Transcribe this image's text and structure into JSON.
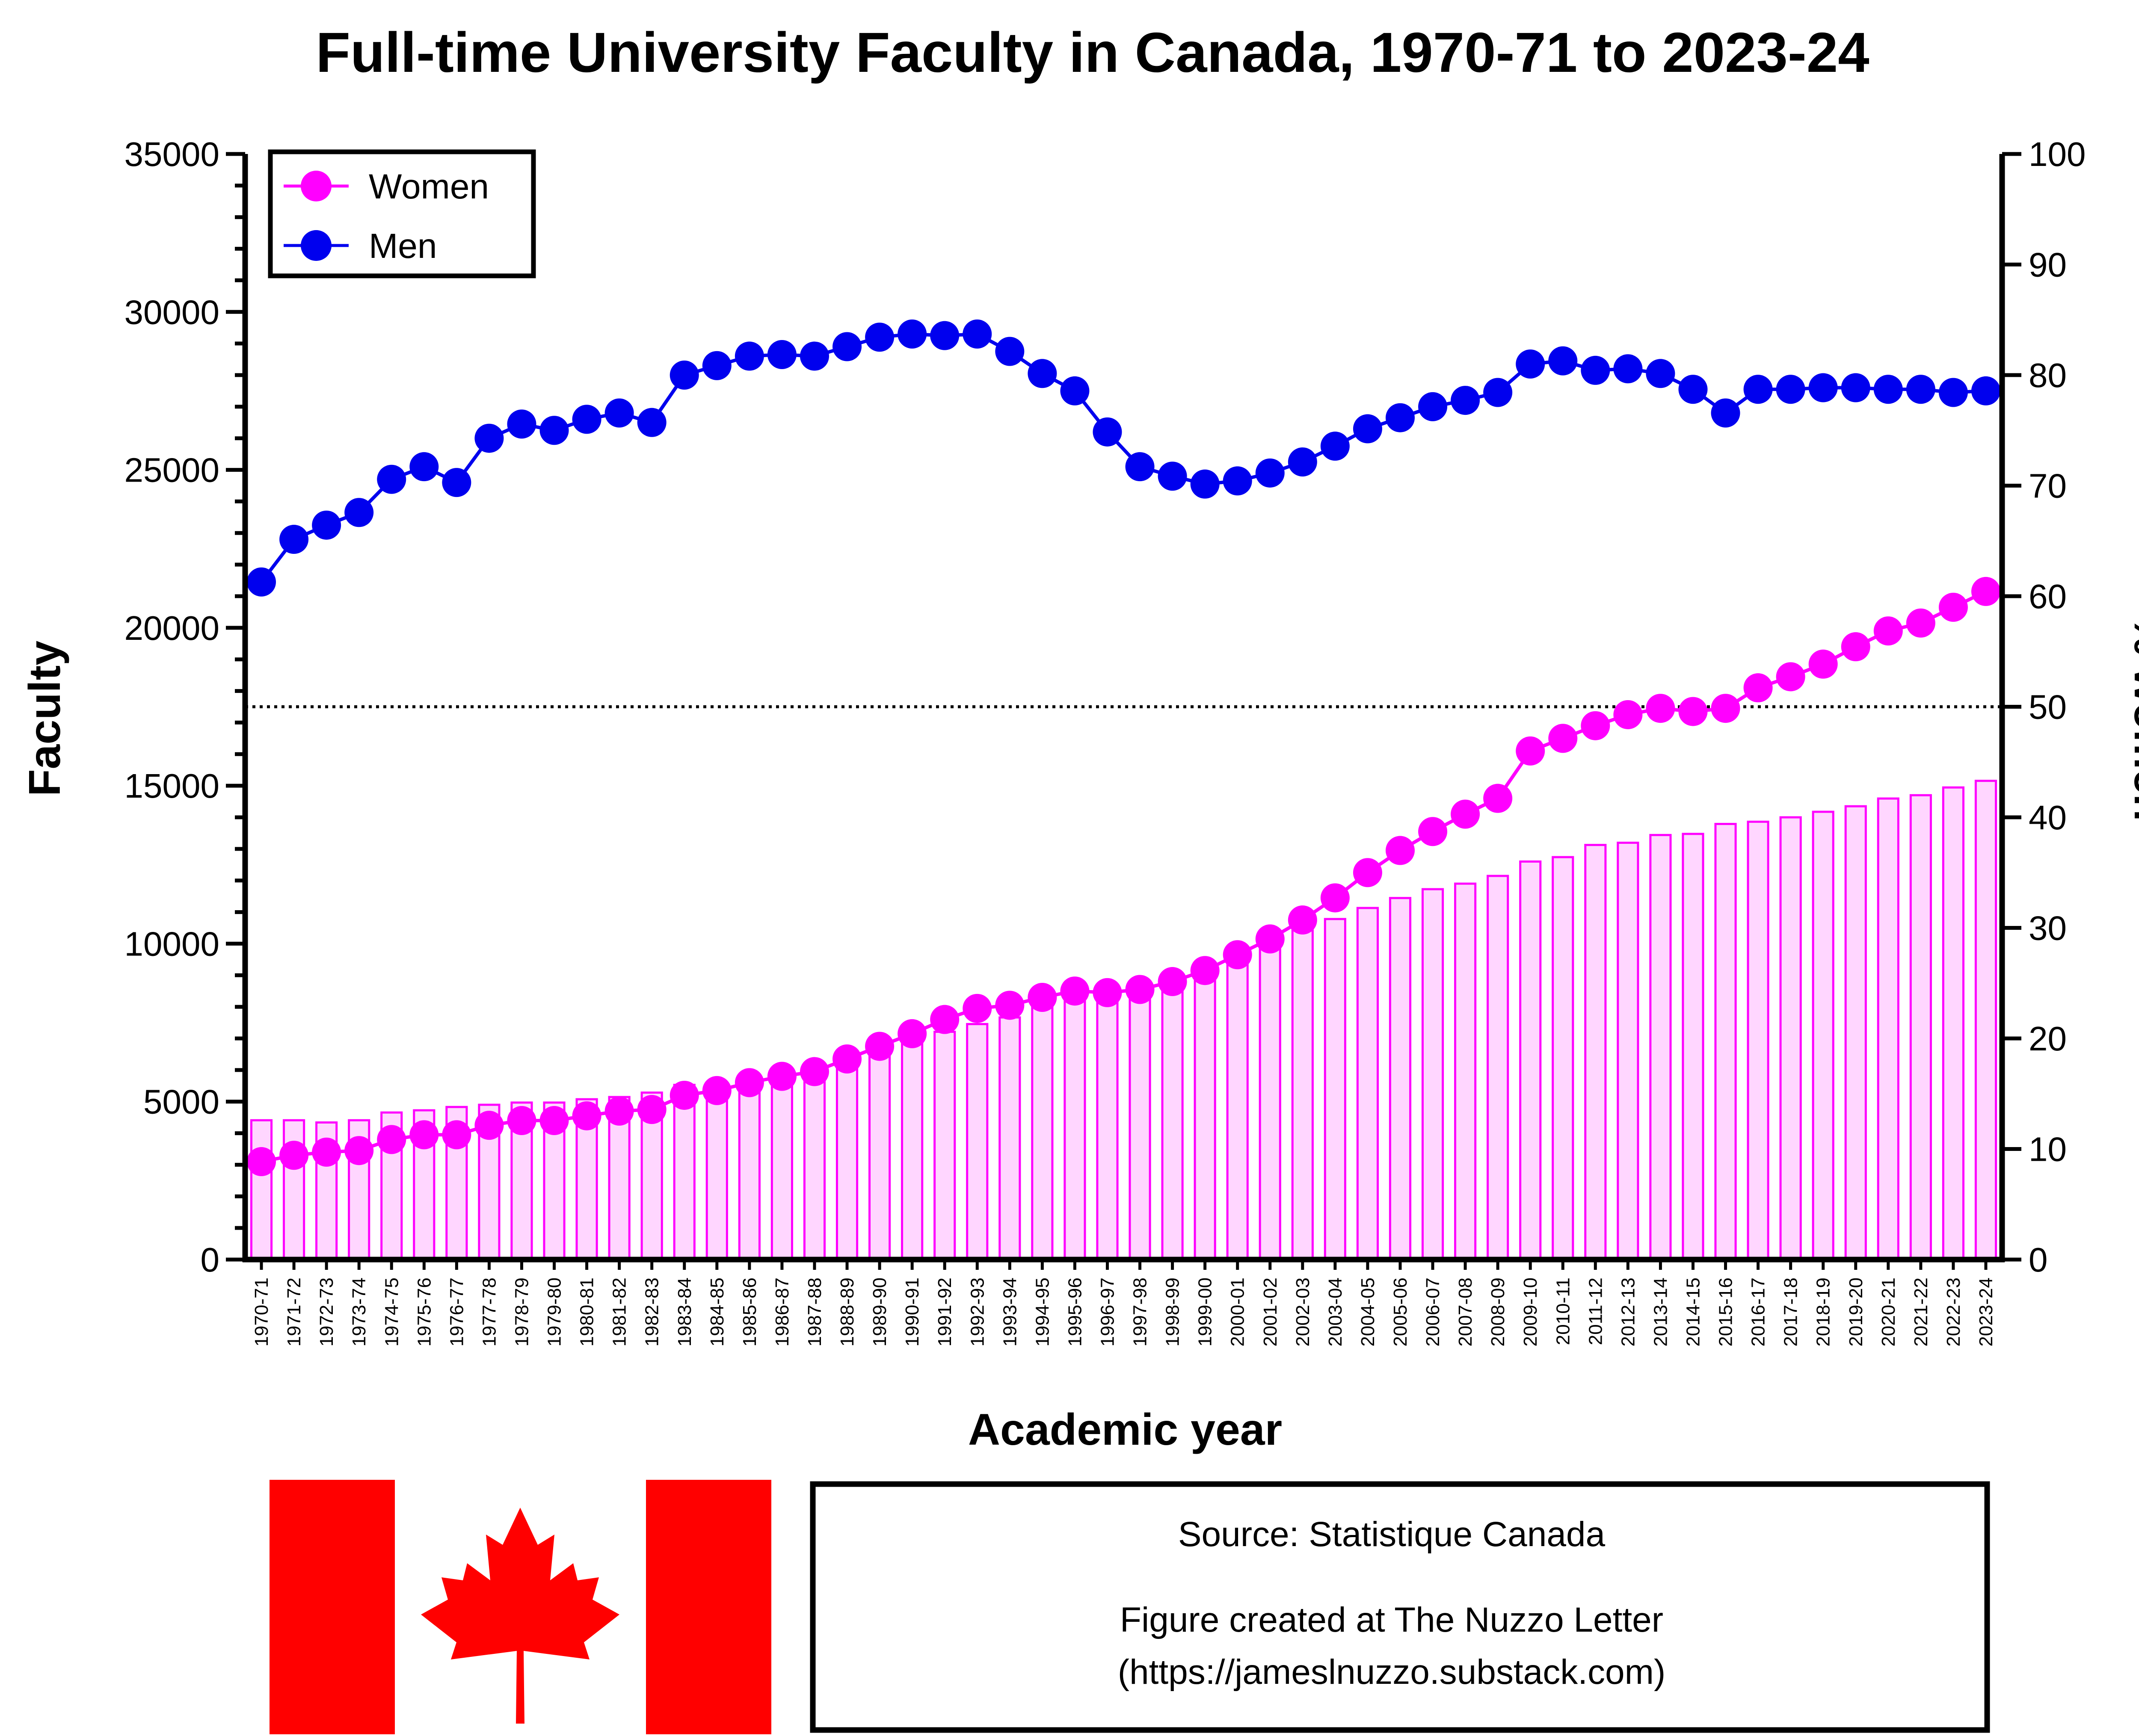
{
  "chart_data": {
    "type": "bar+line",
    "title": "Full-time University Faculty in Canada, 1970-71 to 2023-24",
    "xlabel": "Academic year",
    "ylabel_left": "Faculty",
    "ylabel_right": "% women",
    "ylim_left": [
      0,
      35000
    ],
    "ylim_right": [
      0,
      100
    ],
    "yticks_left": [
      "0",
      "5000",
      "10000",
      "15000",
      "20000",
      "25000",
      "30000",
      "35000"
    ],
    "yticks_right": [
      "0",
      "10",
      "20",
      "30",
      "40",
      "50",
      "60",
      "70",
      "80",
      "90",
      "100"
    ],
    "reference_line_pct": 50,
    "legend_position": "top-left",
    "categories": [
      "1970-71",
      "1971-72",
      "1972-73",
      "1973-74",
      "1974-75",
      "1975-76",
      "1976-77",
      "1977-78",
      "1978-79",
      "1979-80",
      "1980-81",
      "1981-82",
      "1982-83",
      "1983-84",
      "1984-85",
      "1985-86",
      "1986-87",
      "1987-88",
      "1988-89",
      "1989-90",
      "1990-91",
      "1991-92",
      "1992-93",
      "1993-94",
      "1994-95",
      "1995-96",
      "1996-97",
      "1997-98",
      "1998-99",
      "1999-00",
      "2000-01",
      "2001-02",
      "2002-03",
      "2003-04",
      "2004-05",
      "2005-06",
      "2006-07",
      "2007-08",
      "2008-09",
      "2009-10",
      "2010-11",
      "2011-12",
      "2012-13",
      "2013-14",
      "2014-15",
      "2015-16",
      "2016-17",
      "2017-18",
      "2018-19",
      "2019-20",
      "2020-21",
      "2021-22",
      "2022-23",
      "2023-24"
    ],
    "series": [
      {
        "name": "Women",
        "type": "line",
        "axis": "left",
        "color": "#ff00ff",
        "values": [
          3100,
          3300,
          3400,
          3450,
          3800,
          3950,
          3950,
          4250,
          4400,
          4400,
          4550,
          4700,
          4750,
          5200,
          5350,
          5600,
          5800,
          5950,
          6350,
          6750,
          7150,
          7600,
          7950,
          8050,
          8300,
          8500,
          8450,
          8550,
          8800,
          9150,
          9650,
          10150,
          10750,
          11450,
          12250,
          12950,
          13550,
          14100,
          14600,
          16100,
          16500,
          16900,
          17250,
          17450,
          17350,
          17450,
          18100,
          18450,
          18850,
          19400,
          19900,
          20150,
          20650,
          21150
        ]
      },
      {
        "name": "Men",
        "type": "line",
        "axis": "left",
        "color": "#0000ee",
        "values": [
          21450,
          22800,
          23250,
          23650,
          24700,
          25100,
          24600,
          26000,
          26450,
          26250,
          26600,
          26800,
          26500,
          28000,
          28300,
          28600,
          28650,
          28600,
          28900,
          29200,
          29300,
          29250,
          29300,
          28750,
          28050,
          27500,
          26200,
          25100,
          24800,
          24550,
          24650,
          24900,
          25250,
          25750,
          26300,
          26650,
          27000,
          27200,
          27450,
          28350,
          28450,
          28150,
          28200,
          28050,
          27550,
          26800,
          27550,
          27550,
          27600,
          27600,
          27550,
          27550,
          27450,
          27500
        ]
      },
      {
        "name": "% women",
        "type": "bar",
        "axis": "right",
        "color": "#ff00ff",
        "values": [
          12.6,
          12.6,
          12.4,
          12.6,
          13.3,
          13.5,
          13.8,
          14.0,
          14.2,
          14.2,
          14.5,
          14.7,
          15.1,
          15.8,
          16.0,
          16.4,
          16.9,
          17.2,
          18.0,
          18.8,
          19.6,
          20.6,
          21.3,
          21.9,
          22.8,
          23.6,
          24.2,
          25.0,
          25.9,
          26.8,
          27.9,
          29.2,
          29.9,
          30.8,
          31.8,
          32.7,
          33.5,
          34.0,
          34.7,
          36.0,
          36.4,
          37.5,
          37.7,
          38.4,
          38.5,
          39.4,
          39.6,
          40.0,
          40.5,
          41.0,
          41.7,
          42.0,
          42.7,
          43.3
        ]
      }
    ]
  },
  "legend": {
    "items": [
      {
        "label": "Women",
        "color": "#ff00ff"
      },
      {
        "label": "Men",
        "color": "#0000ee"
      }
    ]
  },
  "source_box": {
    "source": "Source: Statistique Canada",
    "credit_line1": "Figure created at The Nuzzo Letter",
    "credit_line2": "(https://jameslnuzzo.substack.com)"
  },
  "flag": {
    "name": "canada-flag-icon",
    "color": "#ff0000"
  }
}
